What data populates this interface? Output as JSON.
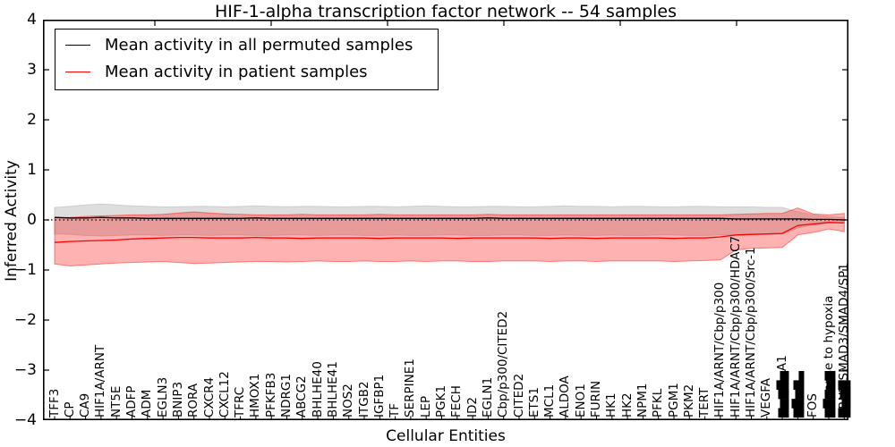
{
  "chart_data": {
    "type": "line",
    "title": "HIF-1-alpha transcription factor network -- 54 samples",
    "xlabel": "Cellular Entities",
    "ylabel": "Inferred Activity",
    "ylim": [
      -4,
      4
    ],
    "yticks": [
      4,
      3,
      2,
      1,
      0,
      -1,
      -2,
      -3,
      -4
    ],
    "reference_line_y": 0,
    "grid": false,
    "legend_position": "upper left",
    "categories": [
      "TFF3",
      "CP",
      "CA9",
      "HIF1A/ARNT",
      "NT5E",
      "ADFP",
      "ADM",
      "EGLN3",
      "BNIP3",
      "RORA",
      "CXCR4",
      "CXCL12",
      "TFRC",
      "HMOX1",
      "PFKFB3",
      "NDRG1",
      "ABCG2",
      "BHLHE40",
      "BHLHE41",
      "NOS2",
      "ITGB2",
      "IGFBP1",
      "TF",
      "SERPINE1",
      "LEP",
      "PGK1",
      "FECH",
      "ID2",
      "EGLN1",
      "Cbp/p300/CITED2",
      "CITED2",
      "ETS1",
      "MCL1",
      "ALDOA",
      "ENO1",
      "FURIN",
      "HK1",
      "HK2",
      "NPM1",
      "PFKL",
      "PGM1",
      "PKM2",
      "TERT",
      "HIF1A/ARNT/Cbp/p300",
      "HIF1A/ARNT/Cbp/p300/HDAC7",
      "HIF1A/ARNT/Cbp/p300/Src-1",
      "VEGFA",
      "▆▅▆▇▅A1",
      "▆▇▅▆▃",
      "FOS",
      "response to hypoxia",
      "ARNT/SMAD3/SMAD4/SP1"
    ],
    "overprint_labels": [
      {
        "index": 50,
        "text": "▆▇▆▅▆"
      },
      {
        "index": 51,
        "text": "▇▅▆▇"
      }
    ],
    "lines": [
      {
        "name": "Mean activity in all permuted samples",
        "color": "#000000",
        "values": [
          0.05,
          0.04,
          0.04,
          0.05,
          0.04,
          0.04,
          0.03,
          0.03,
          0.03,
          0.03,
          0.03,
          0.03,
          0.03,
          0.04,
          0.03,
          0.03,
          0.03,
          0.03,
          0.03,
          0.03,
          0.03,
          0.03,
          0.03,
          0.03,
          0.03,
          0.03,
          0.03,
          0.03,
          0.04,
          0.03,
          0.03,
          0.03,
          0.03,
          0.03,
          0.03,
          0.03,
          0.03,
          0.03,
          0.03,
          0.03,
          0.03,
          0.03,
          0.03,
          0.03,
          0.02,
          0.02,
          0.02,
          0.02,
          0.02,
          0.01,
          0.01,
          0.0
        ]
      },
      {
        "name": "Mean activity in patient samples",
        "color": "#ff0000",
        "values": [
          -0.45,
          -0.43,
          -0.42,
          -0.41,
          -0.4,
          -0.38,
          -0.37,
          -0.36,
          -0.35,
          -0.35,
          -0.36,
          -0.36,
          -0.36,
          -0.35,
          -0.36,
          -0.36,
          -0.37,
          -0.36,
          -0.36,
          -0.36,
          -0.36,
          -0.37,
          -0.36,
          -0.36,
          -0.36,
          -0.36,
          -0.37,
          -0.36,
          -0.36,
          -0.36,
          -0.36,
          -0.36,
          -0.37,
          -0.36,
          -0.36,
          -0.37,
          -0.36,
          -0.36,
          -0.36,
          -0.36,
          -0.37,
          -0.36,
          -0.36,
          -0.34,
          -0.3,
          -0.29,
          -0.28,
          -0.27,
          -0.11,
          -0.08,
          -0.05,
          -0.06
        ]
      }
    ],
    "bands": [
      {
        "name": "Permuted samples activity range",
        "color": "#bebebe",
        "opacity": 0.5,
        "upper": [
          0.25,
          0.27,
          0.3,
          0.32,
          0.3,
          0.28,
          0.27,
          0.26,
          0.26,
          0.27,
          0.27,
          0.26,
          0.27,
          0.28,
          0.27,
          0.26,
          0.27,
          0.27,
          0.26,
          0.26,
          0.27,
          0.27,
          0.26,
          0.27,
          0.28,
          0.27,
          0.26,
          0.26,
          0.27,
          0.27,
          0.26,
          0.26,
          0.27,
          0.28,
          0.27,
          0.27,
          0.26,
          0.27,
          0.27,
          0.26,
          0.26,
          0.27,
          0.27,
          0.26,
          0.26,
          0.26,
          0.25,
          0.25,
          0.16,
          0.1,
          0.06,
          0.05
        ],
        "lower": [
          -0.28,
          -0.29,
          -0.31,
          -0.32,
          -0.31,
          -0.3,
          -0.3,
          -0.31,
          -0.3,
          -0.3,
          -0.31,
          -0.3,
          -0.3,
          -0.31,
          -0.31,
          -0.3,
          -0.3,
          -0.31,
          -0.3,
          -0.3,
          -0.31,
          -0.31,
          -0.3,
          -0.31,
          -0.31,
          -0.3,
          -0.3,
          -0.31,
          -0.31,
          -0.3,
          -0.3,
          -0.31,
          -0.31,
          -0.3,
          -0.31,
          -0.31,
          -0.3,
          -0.31,
          -0.31,
          -0.3,
          -0.3,
          -0.31,
          -0.31,
          -0.3,
          -0.3,
          -0.29,
          -0.29,
          -0.28,
          -0.16,
          -0.1,
          -0.06,
          -0.05
        ]
      },
      {
        "name": "Patient samples activity range",
        "color": "#ff0000",
        "opacity": 0.3,
        "upper": [
          0.04,
          0.05,
          0.07,
          0.08,
          0.09,
          0.1,
          0.1,
          0.11,
          0.14,
          0.16,
          0.14,
          0.12,
          0.11,
          0.1,
          0.1,
          0.1,
          0.11,
          0.1,
          0.1,
          0.1,
          0.1,
          0.11,
          0.1,
          0.1,
          0.1,
          0.1,
          0.1,
          0.1,
          0.11,
          0.1,
          0.1,
          0.1,
          0.1,
          0.1,
          0.1,
          0.1,
          0.1,
          0.1,
          0.1,
          0.1,
          0.1,
          0.1,
          0.1,
          0.1,
          0.11,
          0.12,
          0.13,
          0.13,
          0.24,
          0.12,
          0.1,
          0.13
        ],
        "lower": [
          -0.88,
          -0.92,
          -0.9,
          -0.88,
          -0.86,
          -0.85,
          -0.84,
          -0.83,
          -0.85,
          -0.87,
          -0.86,
          -0.85,
          -0.84,
          -0.83,
          -0.83,
          -0.84,
          -0.83,
          -0.82,
          -0.83,
          -0.83,
          -0.82,
          -0.83,
          -0.83,
          -0.82,
          -0.83,
          -0.82,
          -0.82,
          -0.83,
          -0.83,
          -0.82,
          -0.82,
          -0.82,
          -0.83,
          -0.82,
          -0.82,
          -0.83,
          -0.82,
          -0.82,
          -0.82,
          -0.82,
          -0.83,
          -0.82,
          -0.81,
          -0.8,
          -0.6,
          -0.57,
          -0.56,
          -0.55,
          -0.3,
          -0.25,
          -0.18,
          -0.23
        ]
      }
    ]
  },
  "legend": {
    "items": [
      {
        "label": "Mean activity in all permuted samples",
        "color": "#000000"
      },
      {
        "label": "Mean activity in patient samples",
        "color": "#ff0000"
      }
    ]
  }
}
